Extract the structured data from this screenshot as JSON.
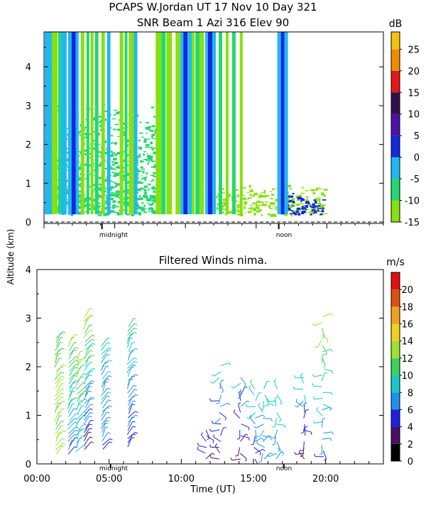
{
  "header": {
    "line1": "PCAPS W.Jordan UT  17 Nov 10 Day 321",
    "line2": "SNR Beam 1 Azi 316 Elev 90"
  },
  "y_axis_label": "Altitude (km)",
  "x_axis_label": "Time (UT)",
  "x_tick_labels": [
    "00:00",
    "05:00",
    "10:00",
    "15:00",
    "20:00"
  ],
  "markers": {
    "midnight": "midnight",
    "noon": "noon"
  },
  "chart_data": [
    {
      "type": "heatmap",
      "title": "SNR Beam 1 Azi 316 Elev 90",
      "xlabel": "Time (UT)",
      "ylabel": "Altitude (km)",
      "xlim": [
        0,
        24
      ],
      "ylim": [
        0,
        4.9
      ],
      "y_ticks": [
        0,
        1,
        2,
        3,
        4
      ],
      "colorbar": {
        "unit": "dB",
        "ticks": [
          -15,
          -10,
          -5,
          0,
          5,
          10,
          15,
          20,
          25
        ],
        "tick_labels": [
          "-15",
          "-10",
          "-5",
          "0",
          "5",
          "10",
          "15",
          "20",
          "25"
        ],
        "levels": [
          {
            "range": [
              -15,
              -10
            ],
            "color": "#88e010"
          },
          {
            "range": [
              -10,
              -5
            ],
            "color": "#22d870"
          },
          {
            "range": [
              -5,
              0
            ],
            "color": "#20b8f0"
          },
          {
            "range": [
              0,
              5
            ],
            "color": "#1428e0"
          },
          {
            "range": [
              5,
              10
            ],
            "color": "#5010a8"
          },
          {
            "range": [
              10,
              15
            ],
            "color": "#301050"
          },
          {
            "range": [
              15,
              20
            ],
            "color": "#e01818"
          },
          {
            "range": [
              20,
              25
            ],
            "color": "#f08c00"
          },
          {
            "range": [
              25,
              29
            ],
            "color": "#f8c010"
          }
        ]
      },
      "full_height_columns": [
        {
          "t": [
            0.05,
            0.55
          ],
          "color": "#20b8f0"
        },
        {
          "t": [
            0.55,
            0.95
          ],
          "color": "#88e010"
        },
        {
          "t": [
            1.0,
            1.2
          ],
          "color": "#22d870"
        },
        {
          "t": [
            1.2,
            1.6
          ],
          "color": "#20b8f0"
        },
        {
          "t": [
            1.7,
            1.95
          ],
          "color": "#20b8f0"
        },
        {
          "t": [
            1.95,
            2.25
          ],
          "color": "#1428e0"
        },
        {
          "t": [
            2.25,
            2.45
          ],
          "color": "#20b8f0"
        },
        {
          "t": [
            2.6,
            2.85
          ],
          "color": "#88e010"
        },
        {
          "t": [
            3.0,
            3.2
          ],
          "color": "#22d870"
        },
        {
          "t": [
            3.3,
            3.5
          ],
          "color": "#88e010"
        },
        {
          "t": [
            3.6,
            3.85
          ],
          "color": "#22d870"
        },
        {
          "t": [
            4.05,
            4.3
          ],
          "color": "#88e010"
        },
        {
          "t": [
            4.45,
            4.7
          ],
          "color": "#20b8f0"
        },
        {
          "t": [
            5.35,
            5.6
          ],
          "color": "#88e010"
        },
        {
          "t": [
            5.7,
            5.9
          ],
          "color": "#22d870"
        },
        {
          "t": [
            6.0,
            6.35
          ],
          "color": "#88e010"
        },
        {
          "t": [
            6.35,
            6.6
          ],
          "color": "#20b8f0"
        },
        {
          "t": [
            7.9,
            8.3
          ],
          "color": "#88e010"
        },
        {
          "t": [
            8.3,
            8.6
          ],
          "color": "#22d870"
        },
        {
          "t": [
            8.65,
            9.05
          ],
          "color": "#88e010"
        },
        {
          "t": [
            9.3,
            9.65
          ],
          "color": "#88e010"
        },
        {
          "t": [
            9.65,
            9.85
          ],
          "color": "#20b8f0"
        },
        {
          "t": [
            9.85,
            10.15
          ],
          "color": "#1428e0"
        },
        {
          "t": [
            10.15,
            10.45
          ],
          "color": "#20b8f0"
        },
        {
          "t": [
            10.45,
            10.65
          ],
          "color": "#88e010"
        },
        {
          "t": [
            10.7,
            11.0
          ],
          "color": "#22d870"
        },
        {
          "t": [
            11.0,
            11.3
          ],
          "color": "#88e010"
        },
        {
          "t": [
            11.4,
            11.6
          ],
          "color": "#20b8f0"
        },
        {
          "t": [
            11.6,
            11.9
          ],
          "color": "#1428e0"
        },
        {
          "t": [
            11.9,
            12.15
          ],
          "color": "#20b8f0"
        },
        {
          "t": [
            12.35,
            12.6
          ],
          "color": "#22d870"
        },
        {
          "t": [
            12.85,
            13.05
          ],
          "color": "#88e010"
        },
        {
          "t": [
            13.3,
            13.55
          ],
          "color": "#22d870"
        },
        {
          "t": [
            13.85,
            14.05
          ],
          "color": "#88e010"
        },
        {
          "t": [
            16.5,
            16.75
          ],
          "color": "#20b8f0"
        },
        {
          "t": [
            16.75,
            17.0
          ],
          "color": "#1428e0"
        },
        {
          "t": [
            17.0,
            17.25
          ],
          "color": "#20b8f0"
        }
      ],
      "texture_regions": [
        {
          "t": [
            0.5,
            7.9
          ],
          "z": [
            0.2,
            3.1
          ],
          "color": "#22d870"
        },
        {
          "t": [
            12.1,
            19.8
          ],
          "z": [
            0.2,
            1.0
          ],
          "color": "#88e010"
        },
        {
          "t": [
            17.0,
            19.8
          ],
          "z": [
            0.2,
            0.8
          ],
          "color": "#1428e0"
        }
      ]
    },
    {
      "type": "scatter",
      "title": "Filtered Winds nima.",
      "xlabel": "Time (UT)",
      "ylabel": "Altitude (km)",
      "xlim": [
        0,
        24
      ],
      "ylim": [
        0,
        4
      ],
      "y_ticks": [
        0,
        1,
        2,
        3,
        4
      ],
      "colorbar": {
        "unit": "m/s",
        "ticks": [
          0,
          2,
          4,
          6,
          8,
          10,
          12,
          14,
          16,
          18,
          20
        ],
        "tick_labels": [
          "0",
          "2",
          "4",
          "6",
          "8",
          "10",
          "12",
          "14",
          "16",
          "18",
          "20"
        ],
        "colors": [
          "#000000",
          "#481068",
          "#2020e0",
          "#2090f0",
          "#18c8c8",
          "#40d060",
          "#a0e030",
          "#f0d020",
          "#f0a020",
          "#e05010",
          "#e01010"
        ]
      },
      "barb_columns": [
        {
          "t": 1.3,
          "z": [
            0.2,
            2.65
          ],
          "speed": [
            13,
            11
          ],
          "heavy": true
        },
        {
          "t": 2.2,
          "z": [
            0.2,
            2.55
          ],
          "speed": [
            6,
            13
          ],
          "heavy": true
        },
        {
          "t": 2.75,
          "z": [
            0.25,
            2.15
          ],
          "speed": [
            8,
            13
          ],
          "heavy": true
        },
        {
          "t": 3.3,
          "z": [
            0.3,
            3.1
          ],
          "speed": [
            4,
            13
          ],
          "heavy": true
        },
        {
          "t": 4.5,
          "z": [
            0.3,
            2.5
          ],
          "speed": [
            6,
            9
          ],
          "heavy": true
        },
        {
          "t": 6.3,
          "z": [
            0.35,
            2.85
          ],
          "speed": [
            5,
            10
          ],
          "heavy": true
        },
        {
          "t": 11.7,
          "z": [
            0.1,
            0.75
          ],
          "speed": [
            4,
            6
          ],
          "heavy": false
        },
        {
          "t": 12.7,
          "z": [
            0.1,
            2.05
          ],
          "speed": [
            4,
            8
          ],
          "heavy": false
        },
        {
          "t": 14.1,
          "z": [
            0.1,
            1.85
          ],
          "speed": [
            3,
            8
          ],
          "heavy": false
        },
        {
          "t": 15.1,
          "z": [
            0.1,
            1.6
          ],
          "speed": [
            4,
            10
          ],
          "heavy": false
        },
        {
          "t": 15.7,
          "z": [
            0.1,
            1.6
          ],
          "speed": [
            6,
            10
          ],
          "heavy": false
        },
        {
          "t": 16.6,
          "z": [
            0.1,
            1.55
          ],
          "speed": [
            7,
            10
          ],
          "heavy": false
        },
        {
          "t": 18.5,
          "z": [
            0.1,
            1.85
          ],
          "speed": [
            3,
            9
          ],
          "heavy": false
        },
        {
          "t": 19.8,
          "z": [
            0.15,
            3.1
          ],
          "speed": [
            6,
            13
          ],
          "heavy": false
        }
      ]
    }
  ]
}
